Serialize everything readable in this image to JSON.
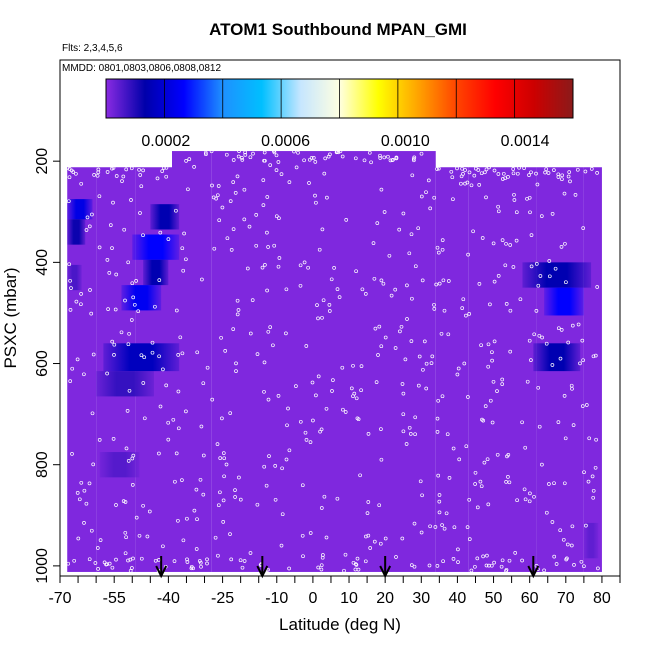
{
  "chart_data": {
    "type": "heatmap",
    "title": "ATOM1 Southbound MPAN_GMI",
    "notes": [
      "Flts: 2,3,4,5,6",
      "MMDD: 0801,0803,0806,0808,0812"
    ],
    "xlabel": "Latitude (deg N)",
    "ylabel": "PSXC (mbar)",
    "xlim": [
      -70,
      85
    ],
    "ylim": [
      1020,
      0
    ],
    "xticks": [
      -70,
      -55,
      -40,
      -25,
      -10,
      0,
      10,
      20,
      30,
      40,
      50,
      60,
      70,
      80
    ],
    "xtick_labels": [
      "-70",
      "-55",
      "-40",
      "-25",
      "-10",
      "0",
      "10",
      "20",
      "30",
      "40",
      "50",
      "60",
      "70",
      "80"
    ],
    "xticks_minor": [
      -65,
      -60,
      -50,
      -45,
      -35,
      -30,
      -20,
      -15,
      -5,
      5,
      15,
      25,
      35,
      45,
      55,
      65,
      75,
      85
    ],
    "yticks": [
      200,
      400,
      600,
      800,
      1000
    ],
    "ytick_labels": [
      "200",
      "400",
      "600",
      "800",
      "1000"
    ],
    "colorbar": {
      "range": [
        0,
        0.00156
      ],
      "ticks": [
        0.0002,
        0.0006,
        0.001,
        0.0014
      ],
      "tick_labels": [
        "0.0002",
        "0.0006",
        "0.0010",
        "0.0014"
      ],
      "colors": [
        "#8a2be2",
        "#0000aa",
        "#0000ff",
        "#1e90ff",
        "#00bfff",
        "#c6e6ff",
        "#ffffe0",
        "#ffff00",
        "#ffa500",
        "#ff4500",
        "#ff0000",
        "#cc0000",
        "#8b1a1a"
      ]
    },
    "background_value": 1e-05,
    "background_color": "#8a2be2",
    "coverage": {
      "lat_edges": [
        -68,
        -60,
        -49,
        -39,
        -28,
        34,
        43,
        54,
        62,
        75,
        80
      ],
      "top_pressure": [
        212,
        212,
        212,
        180,
        180,
        212,
        212,
        212,
        212,
        212
      ],
      "bottom_pressure": 1012
    },
    "enhanced_cells": [
      {
        "lat": [
          -68,
          -61
        ],
        "p": [
          275,
          315
        ],
        "value": 0.00022
      },
      {
        "lat": [
          -68,
          -63
        ],
        "p": [
          315,
          365
        ],
        "value": 0.00012
      },
      {
        "lat": [
          -68,
          -64
        ],
        "p": [
          405,
          455
        ],
        "value": 6e-05
      },
      {
        "lat": [
          -45,
          -37
        ],
        "p": [
          285,
          335
        ],
        "value": 0.00014
      },
      {
        "lat": [
          -50,
          -37
        ],
        "p": [
          345,
          395
        ],
        "value": 0.00026
      },
      {
        "lat": [
          -47,
          -40
        ],
        "p": [
          395,
          445
        ],
        "value": 0.00014
      },
      {
        "lat": [
          -53,
          -42
        ],
        "p": [
          445,
          495
        ],
        "value": 0.00024
      },
      {
        "lat": [
          -58,
          -37
        ],
        "p": [
          560,
          615
        ],
        "value": 0.00016
      },
      {
        "lat": [
          -60,
          -44
        ],
        "p": [
          615,
          665
        ],
        "value": 8e-05
      },
      {
        "lat": [
          -59,
          -48
        ],
        "p": [
          775,
          825
        ],
        "value": 5e-05
      },
      {
        "lat": [
          58,
          77
        ],
        "p": [
          400,
          450
        ],
        "value": 0.00014
      },
      {
        "lat": [
          64,
          75
        ],
        "p": [
          450,
          505
        ],
        "value": 0.00026
      },
      {
        "lat": [
          61,
          74
        ],
        "p": [
          560,
          615
        ],
        "value": 0.00014
      },
      {
        "lat": [
          75,
          79
        ],
        "p": [
          915,
          985
        ],
        "value": 4e-05
      }
    ],
    "flight_markers_lat": [
      -42,
      -14,
      20,
      61
    ],
    "observation_points": {
      "lat_range": [
        -68,
        79
      ],
      "pressure_range": [
        212,
        1012
      ],
      "approx_count": 760
    }
  }
}
